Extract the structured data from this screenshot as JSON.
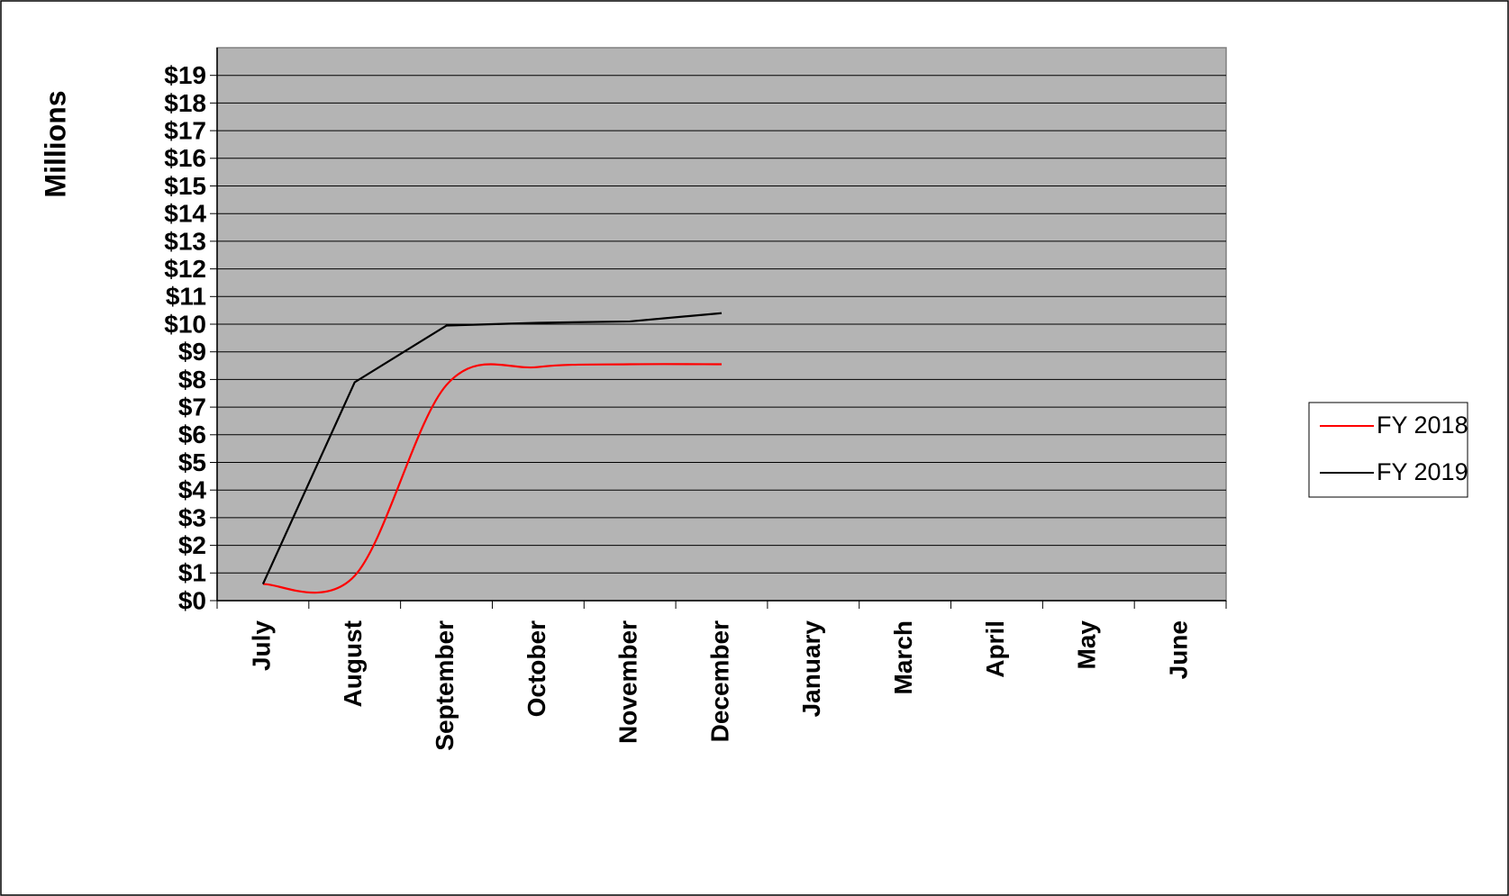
{
  "chart_data": {
    "type": "line",
    "y_label": "Millions",
    "categories": [
      "July",
      "August",
      "September",
      "October",
      "November",
      "December",
      "January",
      "March",
      "April",
      "May",
      "June"
    ],
    "series": [
      {
        "name": "FY 2018",
        "color": "#ff0000",
        "smooth": true,
        "values": [
          0.6,
          0.9,
          7.8,
          8.45,
          8.55,
          8.55,
          null,
          null,
          null,
          null,
          null
        ]
      },
      {
        "name": "FY 2019",
        "color": "#000000",
        "smooth": false,
        "values": [
          0.6,
          7.9,
          9.95,
          10.05,
          10.1,
          10.4,
          null,
          null,
          null,
          null,
          null
        ]
      }
    ],
    "ylim": [
      0,
      20
    ],
    "yticks": [
      {
        "value": 0,
        "label": "$0"
      },
      {
        "value": 1,
        "label": "$1"
      },
      {
        "value": 2,
        "label": "$2"
      },
      {
        "value": 3,
        "label": "$3"
      },
      {
        "value": 4,
        "label": "$4"
      },
      {
        "value": 5,
        "label": "$5"
      },
      {
        "value": 6,
        "label": "$6"
      },
      {
        "value": 7,
        "label": "$7"
      },
      {
        "value": 8,
        "label": "$8"
      },
      {
        "value": 9,
        "label": "$9"
      },
      {
        "value": 10,
        "label": "$10"
      },
      {
        "value": 11,
        "label": "$11"
      },
      {
        "value": 12,
        "label": "$12"
      },
      {
        "value": 13,
        "label": "$13"
      },
      {
        "value": 14,
        "label": "$14"
      },
      {
        "value": 15,
        "label": "$15"
      },
      {
        "value": 16,
        "label": "$16"
      },
      {
        "value": 17,
        "label": "$17"
      },
      {
        "value": 18,
        "label": "$18"
      },
      {
        "value": 19,
        "label": "$19"
      }
    ],
    "grid": true,
    "plot_background": "#b4b4b4",
    "legend": "right"
  }
}
